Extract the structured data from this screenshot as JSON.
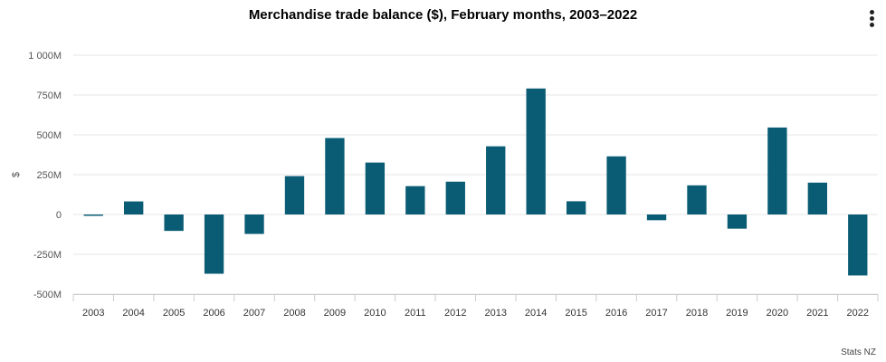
{
  "chart_data": {
    "type": "bar",
    "title": "Merchandise trade balance ($), February months, 2003–2022",
    "xlabel": "",
    "ylabel": "$",
    "ylim": [
      -500,
      1000
    ],
    "yunit": "M",
    "yticks": [
      -500,
      -250,
      0,
      250,
      500,
      750,
      1000
    ],
    "ytick_labels": [
      "-500M",
      "-250M",
      "0",
      "250M",
      "500M",
      "750M",
      "1 000M"
    ],
    "grid": true,
    "categories": [
      "2003",
      "2004",
      "2005",
      "2006",
      "2007",
      "2008",
      "2009",
      "2010",
      "2011",
      "2012",
      "2013",
      "2014",
      "2015",
      "2016",
      "2017",
      "2018",
      "2019",
      "2020",
      "2021",
      "2022"
    ],
    "series": [
      {
        "name": "Merchandise trade balance",
        "color": "#0a5c74",
        "values": [
          -8,
          82,
          -103,
          -372,
          -122,
          241,
          480,
          326,
          178,
          206,
          428,
          791,
          83,
          365,
          -36,
          183,
          -89,
          546,
          200,
          -383
        ]
      }
    ]
  },
  "credits": "Stats NZ",
  "menu_icon": "vertical-ellipsis-icon"
}
